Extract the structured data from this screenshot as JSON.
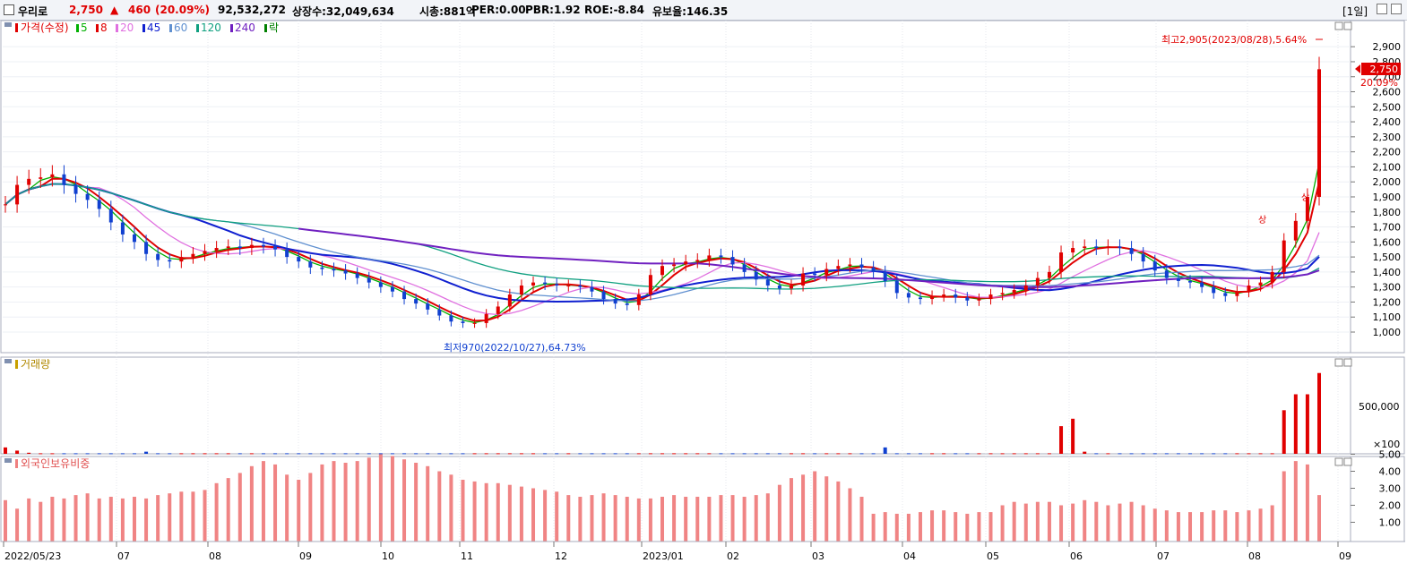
{
  "header": {
    "name": "우리로",
    "price": "2,750",
    "arrow": "▲",
    "change": "460",
    "change_pct": "(20.09%)",
    "volume": "92,532,272",
    "listed": "상장수:32,049,634",
    "mcap": "시총:881억",
    "per": "PER:0.00",
    "pbr": "PBR:1.92",
    "roe": "ROE:-8.84",
    "reserve": "유보율:146.35",
    "period": "[1일]"
  },
  "legend": {
    "price_label": "가격(수정)",
    "ma": [
      {
        "label": "5",
        "color": "#00b000"
      },
      {
        "label": "8",
        "color": "#e00000"
      },
      {
        "label": "20",
        "color": "#e070e0"
      },
      {
        "label": "45",
        "color": "#1020d0"
      },
      {
        "label": "60",
        "color": "#6090d0"
      },
      {
        "label": "120",
        "color": "#10a080"
      },
      {
        "label": "240",
        "color": "#7020c0"
      },
      {
        "label": "락",
        "color": "#008000"
      }
    ]
  },
  "panels": {
    "volume_title": "거래량",
    "foreign_title": "외국인보유비중"
  },
  "annotations": {
    "high": "최고2,905(2023/08/28),5.64%",
    "low": "최저970(2022/10/27),64.73%",
    "current_price": "2,750",
    "current_pct": "20.09%",
    "volume_tick": "500,000",
    "volume_unit": "×100",
    "marker": "상"
  },
  "colors": {
    "up": "#e00000",
    "down": "#1040d0"
  },
  "chart_data": [
    {
      "type": "candlestick",
      "title": "가격(수정)",
      "ylim": [
        900,
        3000
      ],
      "y_ticks": [
        "1,000",
        "1,100",
        "1,200",
        "1,300",
        "1,400",
        "1,500",
        "1,600",
        "1,700",
        "1,800",
        "1,900",
        "2,000",
        "2,100",
        "2,200",
        "2,300",
        "2,400",
        "2,500",
        "2,600",
        "2,700",
        "2,800",
        "2,900"
      ],
      "x_ticks": [
        "2022/05/23",
        "07",
        "08",
        "09",
        "10",
        "11",
        "12",
        "2023/01",
        "02",
        "03",
        "04",
        "05",
        "06",
        "07",
        "08",
        "09"
      ],
      "close": [
        1850,
        1980,
        2020,
        2030,
        2050,
        1980,
        1920,
        1880,
        1820,
        1730,
        1650,
        1600,
        1520,
        1480,
        1470,
        1500,
        1520,
        1540,
        1560,
        1570,
        1560,
        1580,
        1570,
        1550,
        1500,
        1470,
        1430,
        1420,
        1410,
        1390,
        1360,
        1330,
        1300,
        1270,
        1220,
        1190,
        1150,
        1110,
        1070,
        1060,
        1060,
        1120,
        1170,
        1250,
        1310,
        1330,
        1320,
        1310,
        1310,
        1300,
        1270,
        1220,
        1190,
        1180,
        1250,
        1380,
        1440,
        1450,
        1470,
        1480,
        1510,
        1500,
        1450,
        1400,
        1350,
        1310,
        1290,
        1310,
        1390,
        1380,
        1420,
        1440,
        1450,
        1430,
        1400,
        1340,
        1260,
        1230,
        1220,
        1240,
        1250,
        1230,
        1210,
        1220,
        1250,
        1260,
        1280,
        1310,
        1360,
        1400,
        1530,
        1560,
        1570,
        1560,
        1570,
        1560,
        1520,
        1470,
        1410,
        1360,
        1340,
        1330,
        1300,
        1260,
        1240,
        1270,
        1310,
        1330,
        1400,
        1610,
        1740,
        1900,
        2750
      ],
      "ma_series": [
        "5",
        "8",
        "20",
        "45",
        "60",
        "120",
        "240"
      ],
      "high_label": "최고2,905(2023/08/28),5.64%",
      "low_label": "최저970(2022/10/27),64.73%"
    },
    {
      "type": "bar",
      "title": "거래량",
      "unit": "×100",
      "y_ticks": [
        "500,000"
      ],
      "values": [
        60,
        30,
        10,
        5,
        5,
        5,
        5,
        5,
        5,
        5,
        5,
        5,
        20,
        5,
        5,
        5,
        5,
        5,
        5,
        5,
        5,
        5,
        5,
        5,
        5,
        5,
        5,
        5,
        5,
        5,
        5,
        5,
        5,
        5,
        5,
        5,
        5,
        5,
        5,
        5,
        5,
        5,
        5,
        5,
        5,
        5,
        5,
        5,
        5,
        5,
        5,
        5,
        5,
        5,
        5,
        5,
        5,
        5,
        5,
        5,
        5,
        5,
        5,
        5,
        5,
        5,
        5,
        5,
        5,
        5,
        5,
        5,
        5,
        5,
        5,
        60,
        5,
        5,
        5,
        5,
        5,
        5,
        5,
        5,
        5,
        5,
        5,
        5,
        5,
        5,
        260,
        330,
        20,
        5,
        5,
        5,
        5,
        5,
        5,
        5,
        5,
        5,
        5,
        5,
        5,
        5,
        5,
        5,
        5,
        410,
        560,
        560,
        760
      ]
    },
    {
      "type": "bar",
      "title": "외국인보유비중",
      "ylim": [
        0.6,
        5.4
      ],
      "y_ticks": [
        "1.00",
        "2.00",
        "3.00",
        "4.00",
        "5.00"
      ],
      "values": [
        2.3,
        1.8,
        2.4,
        2.2,
        2.5,
        2.4,
        2.6,
        2.7,
        2.4,
        2.5,
        2.4,
        2.5,
        2.4,
        2.6,
        2.7,
        2.8,
        2.8,
        2.9,
        3.3,
        3.6,
        3.9,
        4.3,
        4.6,
        4.4,
        3.8,
        3.5,
        3.9,
        4.4,
        4.6,
        4.5,
        4.6,
        4.8,
        5.0,
        4.9,
        4.7,
        4.5,
        4.3,
        4.0,
        3.8,
        3.5,
        3.4,
        3.3,
        3.3,
        3.2,
        3.1,
        3.0,
        2.9,
        2.8,
        2.6,
        2.5,
        2.6,
        2.7,
        2.6,
        2.5,
        2.4,
        2.4,
        2.5,
        2.6,
        2.5,
        2.5,
        2.5,
        2.6,
        2.6,
        2.5,
        2.6,
        2.7,
        3.2,
        3.6,
        3.8,
        4.0,
        3.7,
        3.4,
        3.0,
        2.5,
        1.5,
        1.6,
        1.5,
        1.5,
        1.6,
        1.7,
        1.7,
        1.6,
        1.5,
        1.6,
        1.6,
        2.0,
        2.2,
        2.1,
        2.2,
        2.2,
        2.0,
        2.1,
        2.3,
        2.2,
        2.0,
        2.1,
        2.2,
        2.0,
        1.8,
        1.7,
        1.6,
        1.6,
        1.6,
        1.7,
        1.7,
        1.6,
        1.7,
        1.8,
        2.0,
        4.0,
        4.6,
        4.4,
        2.6
      ]
    }
  ]
}
